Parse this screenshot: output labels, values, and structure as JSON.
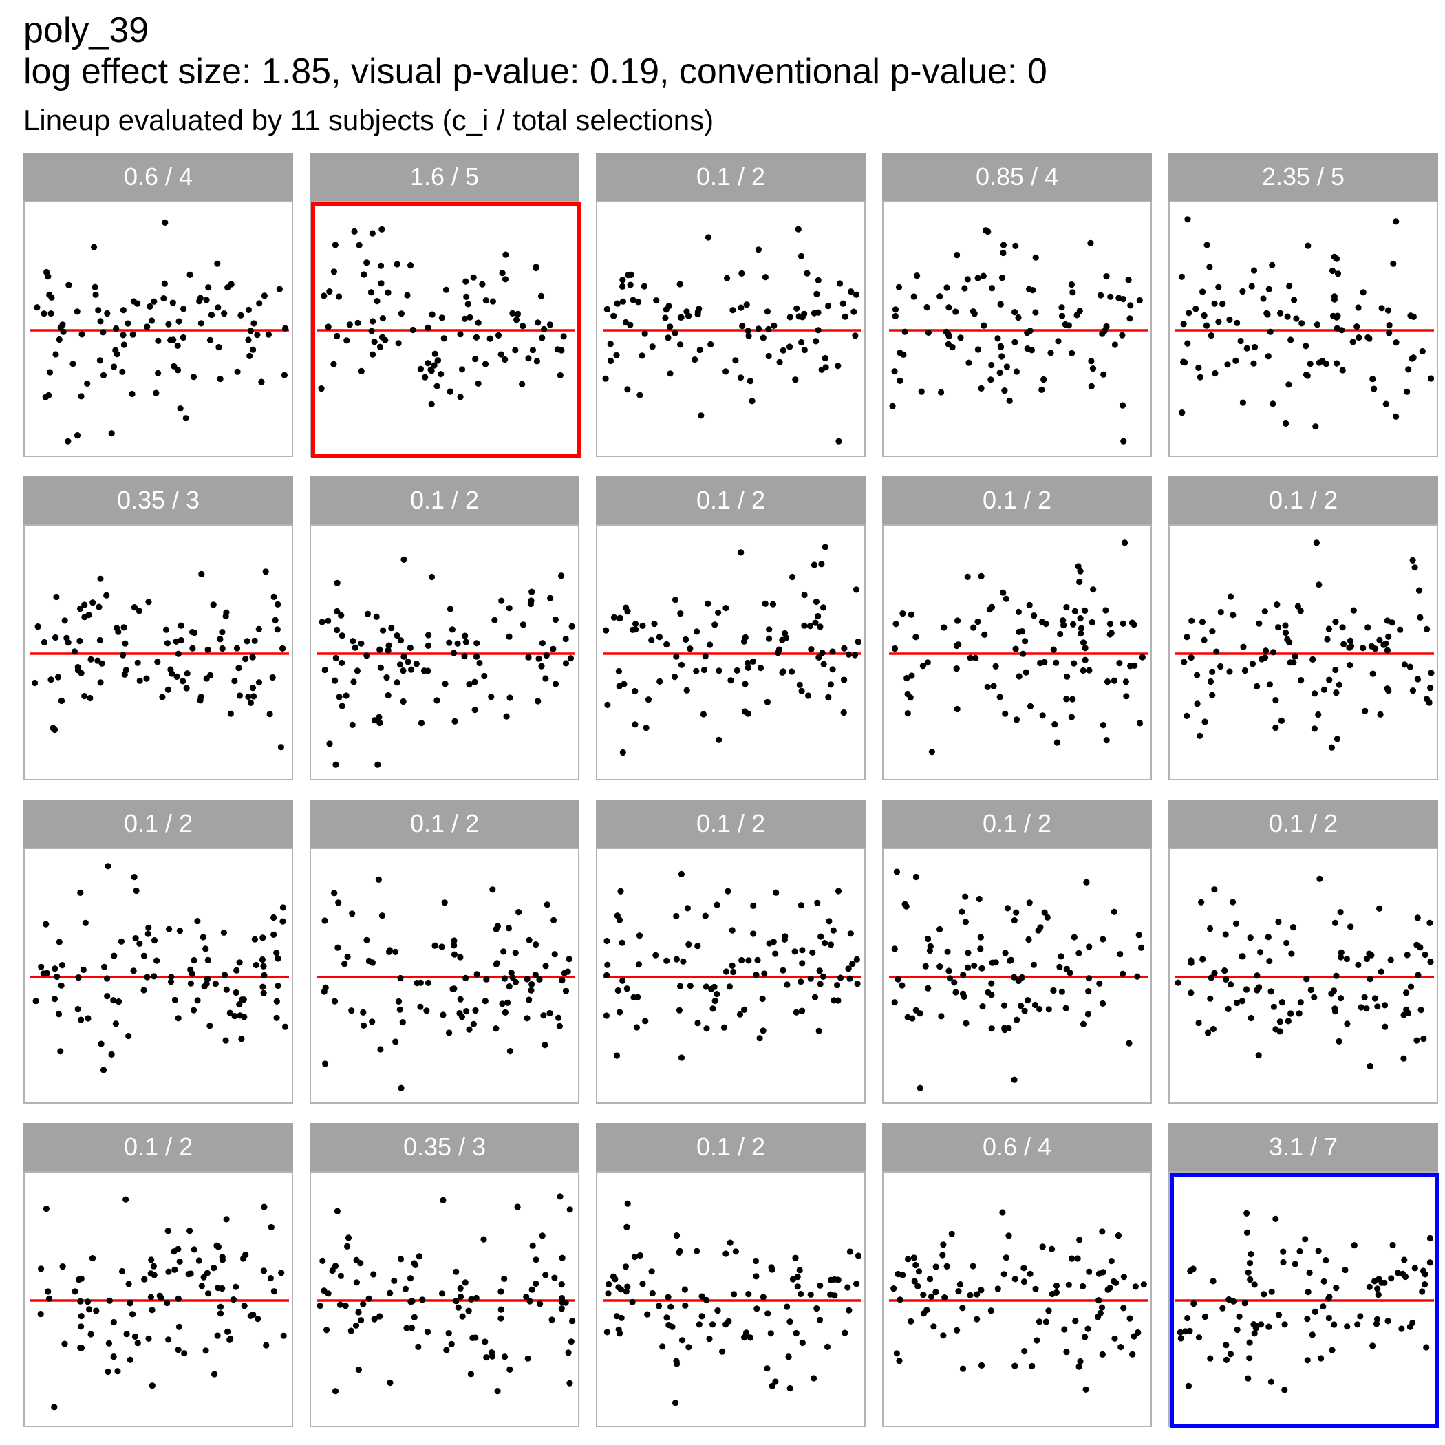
{
  "title": "poly_39",
  "subtitle": "log effect size: 1.85, visual p-value: 0.19, conventional p-value: 0",
  "caption": "Lineup evaluated by 11 subjects (c_i / total selections)",
  "colors": {
    "strip_background": "#a3a3a3",
    "strip_text": "#ffffff",
    "panel_border": "#b3b3b3",
    "reference_line": "#ff0000",
    "points": "#000000",
    "selected_red_border": "#ff0000",
    "selected_blue_border": "#0000ff"
  },
  "chart_data": {
    "type": "scatter",
    "layout": "lineup facet grid 4 rows x 5 columns",
    "reference_line_y": 0,
    "grid": false,
    "axes_visible": false,
    "panels": [
      {
        "label": "0.6 / 4",
        "highlight": "none"
      },
      {
        "label": "1.6 / 5",
        "highlight": "red"
      },
      {
        "label": "0.1 / 2",
        "highlight": "none"
      },
      {
        "label": "0.85 / 4",
        "highlight": "none"
      },
      {
        "label": "2.35 / 5",
        "highlight": "none"
      },
      {
        "label": "0.35 / 3",
        "highlight": "none"
      },
      {
        "label": "0.1 / 2",
        "highlight": "none"
      },
      {
        "label": "0.1 / 2",
        "highlight": "none"
      },
      {
        "label": "0.1 / 2",
        "highlight": "none"
      },
      {
        "label": "0.1 / 2",
        "highlight": "none"
      },
      {
        "label": "0.1 / 2",
        "highlight": "none"
      },
      {
        "label": "0.1 / 2",
        "highlight": "none"
      },
      {
        "label": "0.1 / 2",
        "highlight": "none"
      },
      {
        "label": "0.1 / 2",
        "highlight": "none"
      },
      {
        "label": "0.1 / 2",
        "highlight": "none"
      },
      {
        "label": "0.1 / 2",
        "highlight": "none"
      },
      {
        "label": "0.35 / 3",
        "highlight": "none"
      },
      {
        "label": "0.1 / 2",
        "highlight": "none"
      },
      {
        "label": "0.6 / 4",
        "highlight": "none"
      },
      {
        "label": "3.1 / 7",
        "highlight": "blue"
      }
    ]
  }
}
